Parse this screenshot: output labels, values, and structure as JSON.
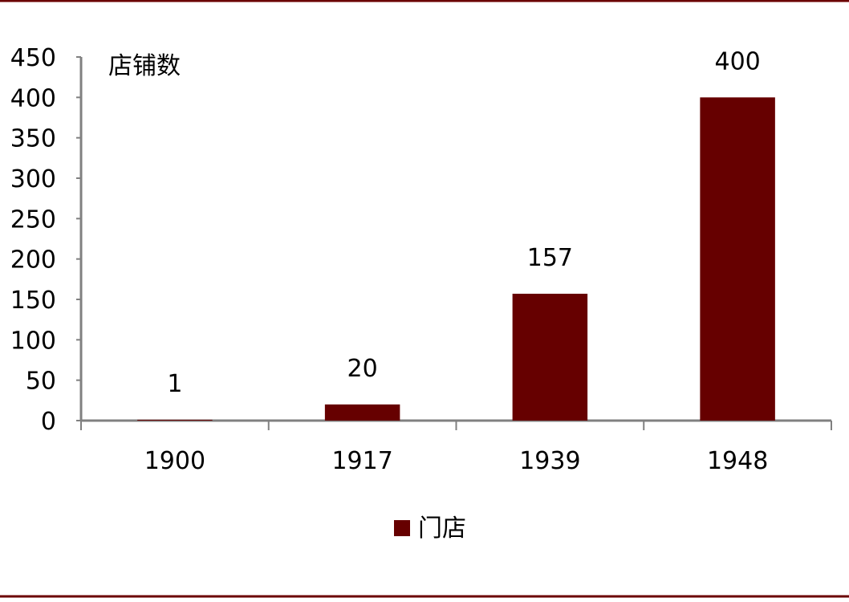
{
  "chart_data": {
    "type": "bar",
    "categories": [
      "1900",
      "1917",
      "1939",
      "1948"
    ],
    "series": [
      {
        "name": "门店",
        "values": [
          1,
          20,
          157,
          400
        ]
      }
    ],
    "data_labels": [
      "1",
      "20",
      "157",
      "400"
    ],
    "ylabel": "店铺数",
    "ylim": [
      0,
      450
    ],
    "yticks": [
      "0",
      "50",
      "100",
      "150",
      "200",
      "250",
      "300",
      "350",
      "400",
      "450"
    ],
    "legend": {
      "position": "bottom",
      "entries": [
        "门店"
      ]
    },
    "grid": false,
    "colors": {
      "bar": "#660000",
      "frame": "#6b0000",
      "axis": "#808080"
    }
  }
}
